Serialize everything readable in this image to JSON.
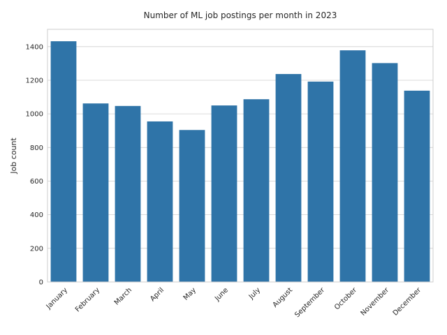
{
  "chart_data": {
    "type": "bar",
    "title": "Number of ML job postings per month in 2023",
    "xlabel": "",
    "ylabel": "Job count",
    "categories": [
      "January",
      "February",
      "March",
      "April",
      "May",
      "June",
      "July",
      "August",
      "September",
      "October",
      "November",
      "December"
    ],
    "values": [
      1432,
      1062,
      1047,
      955,
      904,
      1050,
      1087,
      1237,
      1192,
      1378,
      1302,
      1138
    ],
    "yticks": [
      0,
      200,
      400,
      600,
      800,
      1000,
      1200,
      1400
    ],
    "ylim": [
      0,
      1503
    ],
    "grid": true,
    "bar_color": "#2f74a8"
  }
}
